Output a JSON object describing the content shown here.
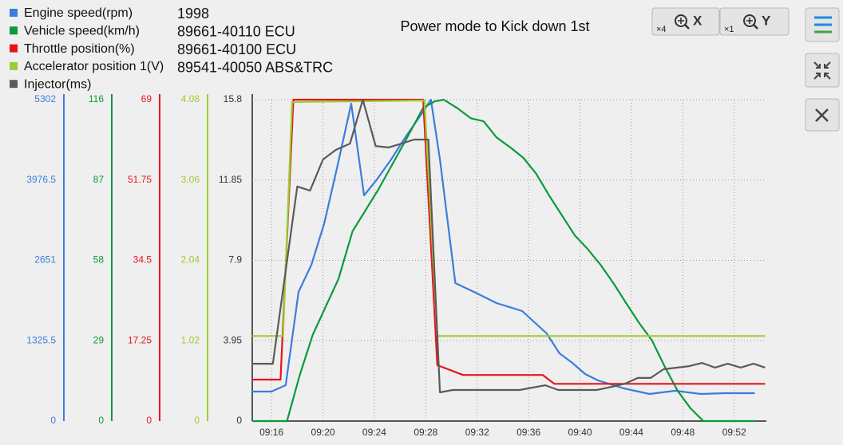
{
  "chart_data": {
    "type": "line",
    "title": "Power mode to Kick down  1st",
    "ecu_info": [
      "1998",
      "89661-40110 ECU",
      "89661-40100 ECU",
      "89541-40050 ABS&TRC"
    ],
    "xlim": [
      554.5,
      594.5
    ],
    "xticks": [
      {
        "value": 556,
        "label": "09:16"
      },
      {
        "value": 560,
        "label": "09:20"
      },
      {
        "value": 564,
        "label": "09:24"
      },
      {
        "value": 568,
        "label": "09:28"
      },
      {
        "value": 572,
        "label": "09:32"
      },
      {
        "value": 576,
        "label": "09:36"
      },
      {
        "value": 580,
        "label": "09:40"
      },
      {
        "value": 584,
        "label": "09:44"
      },
      {
        "value": 588,
        "label": "09:48"
      },
      {
        "value": 592,
        "label": "09:52"
      }
    ],
    "grid": true,
    "series": [
      {
        "name": "Engine speed(rpm)",
        "color": "#3b7ddd",
        "ylim": [
          0,
          5302
        ],
        "yticks": [
          0,
          1325.5,
          2651,
          3976.5,
          5302
        ],
        "x": [
          554.5,
          556,
          557.1,
          558.1,
          559.1,
          560.1,
          561.1,
          562.2,
          563.2,
          564.2,
          565.3,
          566.5,
          567.8,
          568.4,
          569.1,
          570.3,
          572,
          573.5,
          575.5,
          577.4,
          578.4,
          579.4,
          580.4,
          581.4,
          583.4,
          585.4,
          587.4,
          589.4,
          591.3,
          593.6
        ],
        "values": [
          487,
          487,
          592,
          2131,
          2579,
          3263,
          4184,
          5236,
          3723,
          3987,
          4315,
          4710,
          5105,
          5302,
          4315,
          2276,
          2105,
          1947,
          1816,
          1447,
          1118,
          960,
          776,
          671,
          539,
          447,
          500,
          447,
          460,
          460
        ]
      },
      {
        "name": "Vehicle speed(km/h)",
        "color": "#0a9a3c",
        "ylim": [
          0,
          116
        ],
        "yticks": [
          0,
          29,
          58,
          87,
          116
        ],
        "x": [
          554.5,
          557.2,
          558.2,
          559.2,
          560.2,
          561.2,
          562.3,
          564.3,
          566.3,
          567.8,
          568.7,
          569.4,
          570.5,
          571.5,
          572.5,
          573.5,
          574.6,
          575.6,
          576.6,
          577.6,
          578.6,
          579.6,
          580.6,
          581.6,
          582.6,
          583.5,
          584.6,
          585.6,
          586.6,
          587.6,
          588.6,
          589.6,
          593.6
        ],
        "values": [
          0,
          0,
          16.7,
          31.1,
          41.2,
          51.2,
          68.5,
          83.5,
          100.2,
          113.1,
          115.4,
          116,
          112.8,
          109.3,
          108.2,
          102.4,
          98.7,
          95,
          89.2,
          81.4,
          74.2,
          67,
          62.1,
          56.4,
          49.8,
          43.2,
          35.4,
          29.1,
          19.6,
          10.9,
          4.6,
          0,
          0
        ]
      },
      {
        "name": "Throttle position(%)",
        "color": "#e8141c",
        "ylim": [
          0,
          69
        ],
        "yticks": [
          0,
          17.25,
          34.5,
          51.75,
          69
        ],
        "x": [
          554.5,
          556.7,
          557.7,
          567.8,
          568.9,
          570.9,
          577.1,
          578,
          594.4
        ],
        "values": [
          8.9,
          8.9,
          69,
          69,
          12,
          9.9,
          9.9,
          8,
          8
        ]
      },
      {
        "name": "Accelerator position 1(V)",
        "color": "#9acd32",
        "ylim": [
          0,
          4.08
        ],
        "yticks": [
          0,
          1.02,
          2.04,
          3.06,
          4.08
        ],
        "x": [
          554.5,
          556.9,
          557.6,
          567.9,
          568.9,
          594.4
        ],
        "values": [
          1.08,
          1.08,
          4.05,
          4.07,
          1.08,
          1.08
        ]
      },
      {
        "name": "Injector(ms)",
        "color": "#5a5a5a",
        "ylim": [
          0,
          15.8
        ],
        "yticks": [
          0,
          3.95,
          7.9,
          11.85,
          15.8
        ],
        "x": [
          554.5,
          556.1,
          558,
          559,
          560,
          561,
          562.1,
          563.1,
          564.1,
          565.1,
          566.1,
          567.1,
          568.2,
          569.1,
          570.1,
          575.3,
          577.3,
          578.3,
          581.3,
          582.5,
          583.5,
          584.5,
          585.5,
          586.5,
          588.5,
          589.5,
          590.5,
          591.5,
          592.5,
          593.5,
          594.4
        ],
        "values": [
          2.82,
          2.82,
          11.53,
          11.33,
          12.86,
          13.33,
          13.64,
          15.8,
          13.52,
          13.45,
          13.64,
          13.84,
          13.84,
          1.41,
          1.53,
          1.53,
          1.76,
          1.53,
          1.53,
          1.69,
          1.84,
          2.12,
          2.12,
          2.55,
          2.7,
          2.86,
          2.63,
          2.82,
          2.63,
          2.82,
          2.63
        ]
      }
    ]
  },
  "toolbar": {
    "zoom_x": {
      "factor": "×4",
      "axis": "X"
    },
    "zoom_y": {
      "factor": "×1",
      "axis": "Y"
    }
  }
}
